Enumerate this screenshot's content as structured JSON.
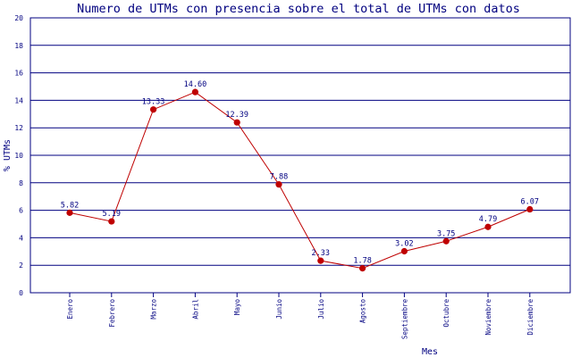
{
  "chart_data": {
    "type": "line",
    "title": "Numero de UTMs con presencia sobre el total de UTMs con datos",
    "xlabel": "Mes",
    "ylabel": "% UTMs",
    "categories": [
      "Enero",
      "Febrero",
      "Marzo",
      "Abril",
      "Mayo",
      "Junio",
      "Julio",
      "Agosto",
      "Septiembre",
      "Octubre",
      "Noviembre",
      "Diciembre"
    ],
    "series": [
      {
        "values": [
          5.82,
          5.19,
          13.33,
          14.6,
          12.39,
          7.88,
          2.33,
          1.78,
          3.02,
          3.75,
          4.79,
          6.07
        ],
        "labels": [
          "5.82",
          "5.19",
          "13.33",
          "14.60",
          "12.39",
          "7.88",
          "2.33",
          "1.78",
          "3.02",
          "3.75",
          "4.79",
          "6.07"
        ]
      }
    ],
    "ylim": [
      0,
      20
    ],
    "yticks": [
      "0",
      "2",
      "4",
      "6",
      "8",
      "10",
      "12",
      "14",
      "16",
      "18",
      "20"
    ],
    "grid": true,
    "colors": {
      "title": "#00007f",
      "axis_text": "#000080",
      "line": "#bf0000",
      "marker": "#bf0000",
      "gridline": "#000080",
      "background": "#ffffff"
    }
  }
}
